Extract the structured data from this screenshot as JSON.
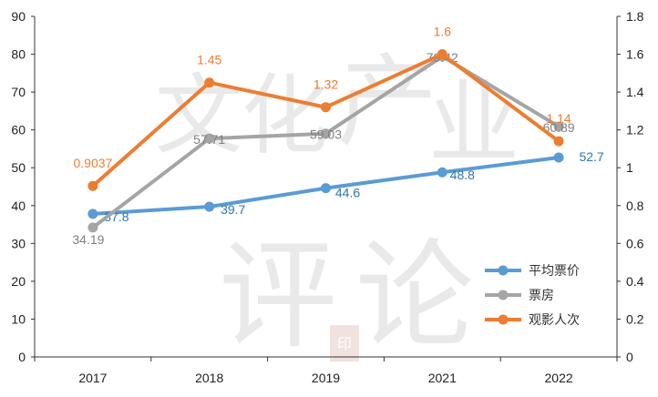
{
  "chart_data": {
    "type": "line",
    "categories": [
      "2017",
      "2018",
      "2019",
      "2021",
      "2022"
    ],
    "left_axis": {
      "range": [
        0,
        90
      ],
      "ticks": [
        "0",
        "10",
        "20",
        "30",
        "40",
        "50",
        "60",
        "70",
        "80",
        "90"
      ]
    },
    "right_axis": {
      "range": [
        0,
        1.8
      ],
      "ticks": [
        "0",
        "0.2",
        "0.4",
        "0.6",
        "0.8",
        "1",
        "1.2",
        "1.4",
        "1.6",
        "1.8"
      ]
    },
    "series": [
      {
        "name": "平均票价",
        "axis": "left",
        "color": "#5b9bd5",
        "values": [
          37.8,
          39.7,
          44.6,
          48.8,
          52.7
        ],
        "labels": [
          "37.8",
          "39.7",
          "44.6",
          "48.8",
          "52.7"
        ],
        "label_color": "#2e75b6"
      },
      {
        "name": "票房",
        "axis": "left",
        "color": "#a5a5a5",
        "values": [
          34.19,
          57.71,
          59.03,
          79.42,
          60.89
        ],
        "labels": [
          "34.19",
          "57.71",
          "59.03",
          "79.42",
          "60.89"
        ],
        "label_color": "#7f7f7f"
      },
      {
        "name": "观影人次",
        "axis": "right",
        "color": "#ed7d31",
        "values": [
          0.9037,
          1.45,
          1.32,
          1.6,
          1.14
        ],
        "labels": [
          "0.9037",
          "1.45",
          "1.32",
          "1.6",
          "1.14"
        ],
        "label_color": "#ed7d31"
      }
    ],
    "legend_position": "bottom-right",
    "grid": false
  },
  "watermark": {
    "characters": [
      "文",
      "化",
      "产",
      "业",
      "评",
      "论"
    ],
    "seal": "印"
  }
}
